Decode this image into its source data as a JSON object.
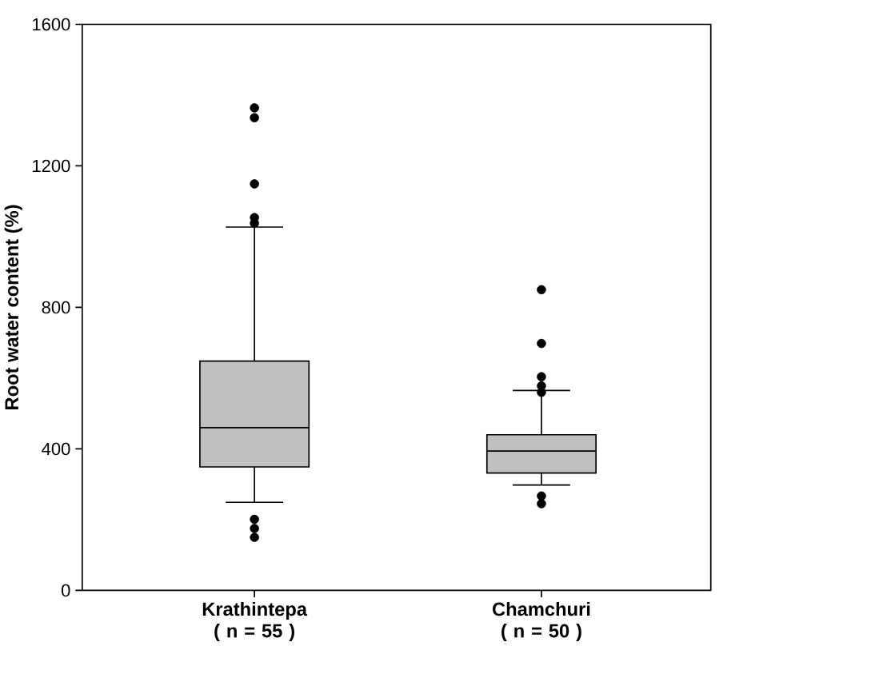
{
  "chart_data": {
    "type": "box",
    "ylabel": "Root water content (%)",
    "categories": [
      "Krathintepa ( n = 55 )",
      "Chamchuri ( n = 50 )"
    ],
    "boxes": [
      {
        "low": 249,
        "q1": 349,
        "median": 460,
        "q3": 648,
        "high": 1027,
        "outliers": [
          1364,
          1336,
          1149,
          1054,
          1038,
          201,
          175,
          150
        ]
      },
      {
        "low": 298,
        "q1": 332,
        "median": 394,
        "q3": 440,
        "high": 565,
        "outliers": [
          850,
          698,
          604,
          578,
          560,
          267,
          245
        ]
      }
    ],
    "color": "#c0c0c0",
    "marker": "circle",
    "ylim": [
      0,
      1600
    ],
    "yticks": [
      0,
      400,
      800,
      1200,
      1600
    ]
  }
}
